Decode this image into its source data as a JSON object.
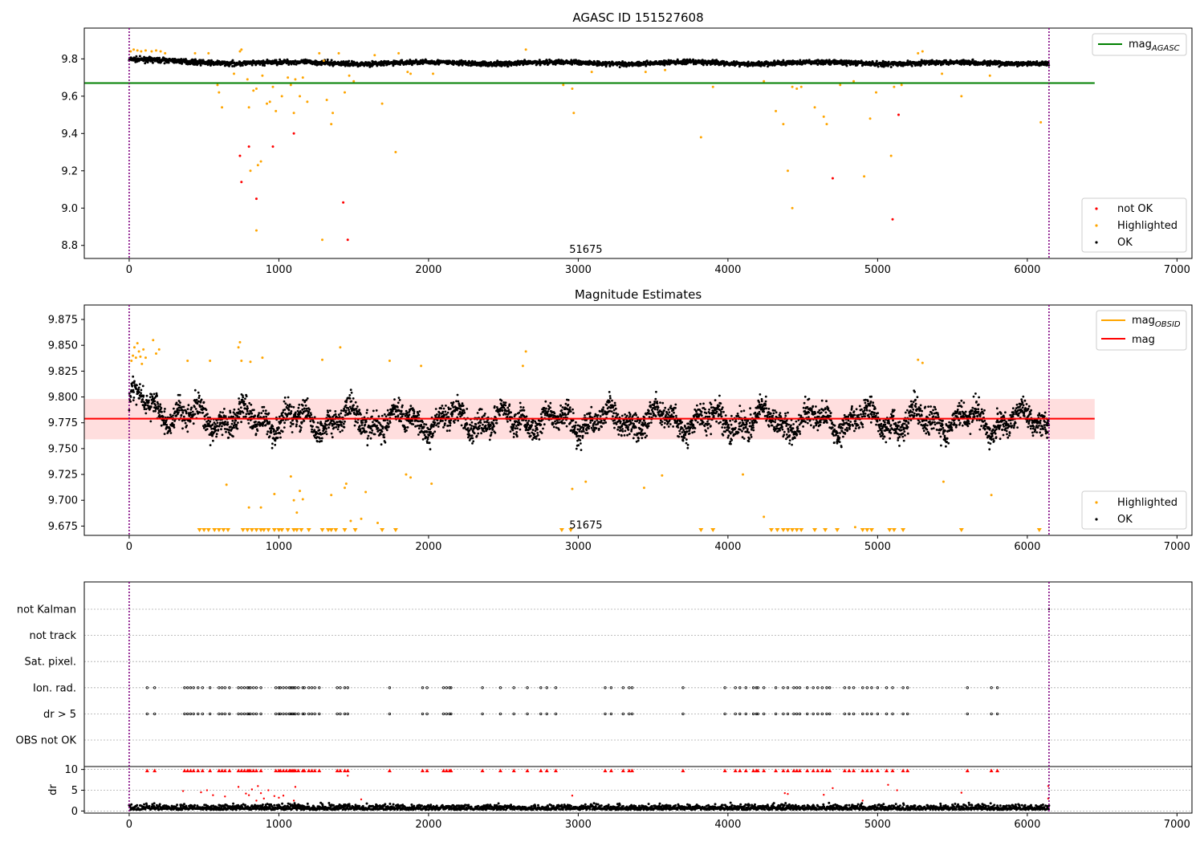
{
  "chart_data": [
    {
      "type": "scatter",
      "title": "AGASC ID 151527608",
      "xlim": [
        -300,
        7100
      ],
      "ylim": [
        8.73,
        9.965
      ],
      "xticks": [
        "0",
        "1000",
        "2000",
        "3000",
        "4000",
        "5000",
        "6000",
        "7000"
      ],
      "yticks": [
        "8.8",
        "9.0",
        "9.2",
        "9.4",
        "9.6",
        "9.8"
      ],
      "obs_label": {
        "text": "51675",
        "x": 2940,
        "y": 8.76
      },
      "vlines_x": [
        0,
        6145
      ],
      "mag_agasc": {
        "value": 9.67,
        "x_range": [
          -300,
          6450
        ]
      },
      "ok_band": {
        "center": 9.79,
        "spread": 0.018,
        "x_range": [
          0,
          6145
        ]
      },
      "highlighted_points": [
        [
          10,
          9.84
        ],
        [
          30,
          9.85
        ],
        [
          55,
          9.845
        ],
        [
          80,
          9.84
        ],
        [
          110,
          9.845
        ],
        [
          150,
          9.84
        ],
        [
          180,
          9.845
        ],
        [
          210,
          9.84
        ],
        [
          240,
          9.83
        ],
        [
          440,
          9.83
        ],
        [
          530,
          9.83
        ],
        [
          590,
          9.66
        ],
        [
          600,
          9.62
        ],
        [
          620,
          9.54
        ],
        [
          700,
          9.72
        ],
        [
          740,
          9.84
        ],
        [
          750,
          9.85
        ],
        [
          790,
          9.69
        ],
        [
          800,
          9.54
        ],
        [
          810,
          9.2
        ],
        [
          830,
          9.63
        ],
        [
          850,
          9.64
        ],
        [
          860,
          9.23
        ],
        [
          880,
          9.25
        ],
        [
          890,
          9.71
        ],
        [
          920,
          9.56
        ],
        [
          940,
          9.57
        ],
        [
          960,
          9.65
        ],
        [
          980,
          9.52
        ],
        [
          1020,
          9.6
        ],
        [
          1060,
          9.7
        ],
        [
          1080,
          9.66
        ],
        [
          1100,
          9.51
        ],
        [
          1110,
          9.69
        ],
        [
          1140,
          9.6
        ],
        [
          1160,
          9.7
        ],
        [
          1190,
          9.57
        ],
        [
          1270,
          9.83
        ],
        [
          1300,
          9.79
        ],
        [
          1320,
          9.58
        ],
        [
          1350,
          9.45
        ],
        [
          1360,
          9.51
        ],
        [
          1400,
          9.83
        ],
        [
          1440,
          9.62
        ],
        [
          1470,
          9.71
        ],
        [
          1500,
          9.68
        ],
        [
          1640,
          9.82
        ],
        [
          1690,
          9.56
        ],
        [
          1780,
          9.3
        ],
        [
          1800,
          9.83
        ],
        [
          1860,
          9.73
        ],
        [
          1880,
          9.72
        ],
        [
          2030,
          9.72
        ],
        [
          2650,
          9.85
        ],
        [
          2900,
          9.66
        ],
        [
          2960,
          9.64
        ],
        [
          2970,
          9.51
        ],
        [
          3090,
          9.73
        ],
        [
          3450,
          9.73
        ],
        [
          3580,
          9.74
        ],
        [
          3820,
          9.38
        ],
        [
          3900,
          9.65
        ],
        [
          4240,
          9.68
        ],
        [
          4320,
          9.52
        ],
        [
          4370,
          9.45
        ],
        [
          4400,
          9.2
        ],
        [
          4430,
          9.0
        ],
        [
          4430,
          9.65
        ],
        [
          4460,
          9.64
        ],
        [
          4490,
          9.65
        ],
        [
          4580,
          9.54
        ],
        [
          4640,
          9.49
        ],
        [
          4660,
          9.45
        ],
        [
          4750,
          9.66
        ],
        [
          4840,
          9.68
        ],
        [
          4910,
          9.17
        ],
        [
          4950,
          9.48
        ],
        [
          4990,
          9.62
        ],
        [
          5090,
          9.28
        ],
        [
          5110,
          9.65
        ],
        [
          5160,
          9.66
        ],
        [
          5270,
          9.83
        ],
        [
          5300,
          9.84
        ],
        [
          5430,
          9.72
        ],
        [
          5560,
          9.6
        ],
        [
          5750,
          9.71
        ],
        [
          6090,
          9.46
        ],
        [
          850,
          8.88
        ],
        [
          1290,
          8.83
        ]
      ],
      "not_ok_points": [
        [
          740,
          9.28
        ],
        [
          750,
          9.14
        ],
        [
          800,
          9.33
        ],
        [
          850,
          9.05
        ],
        [
          960,
          9.33
        ],
        [
          1100,
          9.4
        ],
        [
          1430,
          9.03
        ],
        [
          1460,
          8.83
        ],
        [
          4700,
          9.16
        ],
        [
          5100,
          8.94
        ],
        [
          5140,
          9.5
        ]
      ],
      "legend_line": {
        "label_main": "mag",
        "label_sub": "AGASC",
        "color": "#008000"
      },
      "legend_points": [
        {
          "label": "not OK",
          "color": "#ff0000"
        },
        {
          "label": "Highlighted",
          "color": "#ffa500"
        },
        {
          "label": "OK",
          "color": "#000000"
        }
      ]
    },
    {
      "type": "scatter",
      "title": "Magnitude Estimates",
      "xlim": [
        -300,
        7100
      ],
      "ylim": [
        9.666,
        9.889
      ],
      "xticks": [
        "0",
        "1000",
        "2000",
        "3000",
        "4000",
        "5000",
        "6000",
        "7000"
      ],
      "yticks": [
        "9.675",
        "9.700",
        "9.725",
        "9.750",
        "9.775",
        "9.800",
        "9.825",
        "9.850",
        "9.875"
      ],
      "obs_label": {
        "text": "51675",
        "x": 2940,
        "y": 9.6725
      },
      "vlines_x": [
        0,
        6145
      ],
      "mag_line": {
        "value": 9.779,
        "x_range": [
          -300,
          6450
        ],
        "color": "#ff0000"
      },
      "mag_band": {
        "low": 9.759,
        "high": 9.798,
        "x_range": [
          -300,
          6450
        ]
      },
      "ok_cloud": {
        "center": 9.777,
        "spread": 0.014,
        "early_center": 9.8,
        "x_range": [
          0,
          6145
        ]
      },
      "highlighted_points": [
        [
          15,
          9.835
        ],
        [
          25,
          9.84
        ],
        [
          35,
          9.848
        ],
        [
          45,
          9.838
        ],
        [
          55,
          9.852
        ],
        [
          65,
          9.844
        ],
        [
          75,
          9.839
        ],
        [
          85,
          9.832
        ],
        [
          95,
          9.846
        ],
        [
          110,
          9.838
        ],
        [
          160,
          9.855
        ],
        [
          180,
          9.842
        ],
        [
          200,
          9.846
        ],
        [
          390,
          9.835
        ],
        [
          540,
          9.835
        ],
        [
          650,
          9.715
        ],
        [
          730,
          9.848
        ],
        [
          740,
          9.853
        ],
        [
          750,
          9.835
        ],
        [
          800,
          9.693
        ],
        [
          810,
          9.834
        ],
        [
          880,
          9.693
        ],
        [
          890,
          9.838
        ],
        [
          970,
          9.706
        ],
        [
          1080,
          9.723
        ],
        [
          1100,
          9.7
        ],
        [
          1120,
          9.688
        ],
        [
          1140,
          9.709
        ],
        [
          1160,
          9.701
        ],
        [
          1290,
          9.836
        ],
        [
          1350,
          9.705
        ],
        [
          1410,
          9.848
        ],
        [
          1440,
          9.712
        ],
        [
          1450,
          9.716
        ],
        [
          1480,
          9.68
        ],
        [
          1550,
          9.682
        ],
        [
          1580,
          9.708
        ],
        [
          1660,
          9.678
        ],
        [
          1740,
          9.835
        ],
        [
          1850,
          9.725
        ],
        [
          1880,
          9.722
        ],
        [
          1950,
          9.83
        ],
        [
          2020,
          9.716
        ],
        [
          2630,
          9.83
        ],
        [
          2650,
          9.844
        ],
        [
          2960,
          9.711
        ],
        [
          3050,
          9.718
        ],
        [
          3440,
          9.712
        ],
        [
          3560,
          9.724
        ],
        [
          4100,
          9.725
        ],
        [
          4240,
          9.684
        ],
        [
          4850,
          9.674
        ],
        [
          5270,
          9.836
        ],
        [
          5300,
          9.833
        ],
        [
          5440,
          9.718
        ],
        [
          5760,
          9.705
        ]
      ],
      "down_markers_x": [
        470,
        500,
        530,
        570,
        600,
        630,
        660,
        760,
        790,
        820,
        850,
        880,
        900,
        930,
        970,
        1000,
        1020,
        1060,
        1100,
        1120,
        1150,
        1200,
        1290,
        1330,
        1350,
        1380,
        1440,
        1510,
        1690,
        1780,
        2890,
        2950,
        3820,
        3900,
        4290,
        4330,
        4370,
        4400,
        4430,
        4460,
        4490,
        4580,
        4650,
        4730,
        4900,
        4930,
        4960,
        5080,
        5110,
        5170,
        5560,
        6080
      ],
      "legend_line": [
        {
          "label_main": "mag",
          "label_sub": "OBSID",
          "color": "#ffa500"
        },
        {
          "label_main": "mag",
          "label_sub": "",
          "color": "#ff0000"
        }
      ],
      "legend_points": [
        {
          "label": "Highlighted",
          "color": "#ffa500"
        },
        {
          "label": "OK",
          "color": "#000000"
        }
      ]
    },
    {
      "type": "scatter",
      "title": "",
      "xlim": [
        -300,
        7100
      ],
      "categories": [
        "not Kalman",
        "not track",
        "Sat. pixel.",
        "Ion. rad.",
        "dr > 5",
        "OBS not OK"
      ],
      "flag_x": [
        120,
        170,
        370,
        390,
        410,
        430,
        460,
        490,
        540,
        600,
        620,
        640,
        670,
        730,
        750,
        770,
        790,
        800,
        810,
        830,
        850,
        880,
        980,
        1000,
        1010,
        1030,
        1050,
        1070,
        1080,
        1090,
        1100,
        1110,
        1130,
        1160,
        1170,
        1200,
        1220,
        1240,
        1270,
        1390,
        1410,
        1440,
        1460,
        1740,
        1960,
        1990,
        2100,
        2120,
        2140,
        2150,
        2360,
        2480,
        2570,
        2660,
        2750,
        2790,
        2850,
        3180,
        3220,
        3300,
        3340,
        3360,
        3700,
        3980,
        4050,
        4080,
        4120,
        4170,
        4190,
        4200,
        4240,
        4320,
        4370,
        4400,
        4440,
        4460,
        4480,
        4530,
        4570,
        4600,
        4630,
        4660,
        4680,
        4780,
        4810,
        4840,
        4900,
        4930,
        4960,
        5000,
        5060,
        5100,
        5170,
        5200,
        5600,
        5760,
        5800
      ],
      "dr_panel": {
        "ylabel": "dr",
        "yticks": [
          "0",
          "5",
          "10"
        ],
        "ylim": [
          -0.5,
          10.7
        ],
        "capped_value": 9.7,
        "outlier_points": [
          [
            360,
            4.8
          ],
          [
            480,
            4.5
          ],
          [
            520,
            5.0
          ],
          [
            560,
            3.8
          ],
          [
            640,
            3.5
          ],
          [
            730,
            5.8
          ],
          [
            780,
            4.2
          ],
          [
            800,
            3.8
          ],
          [
            820,
            5.2
          ],
          [
            850,
            2.5
          ],
          [
            860,
            6.0
          ],
          [
            880,
            4.3
          ],
          [
            900,
            3.0
          ],
          [
            930,
            5.0
          ],
          [
            970,
            3.6
          ],
          [
            1000,
            3.2
          ],
          [
            1030,
            3.7
          ],
          [
            1100,
            2.5
          ],
          [
            1110,
            5.8
          ],
          [
            1460,
            8.5
          ],
          [
            1550,
            2.8
          ],
          [
            2960,
            3.7
          ],
          [
            4380,
            4.3
          ],
          [
            4400,
            4.1
          ],
          [
            4640,
            3.9
          ],
          [
            4700,
            5.5
          ],
          [
            4900,
            2.5
          ],
          [
            5070,
            6.3
          ],
          [
            5130,
            5.0
          ],
          [
            5560,
            4.4
          ],
          [
            6140,
            3.0
          ],
          [
            6140,
            6.0
          ]
        ]
      },
      "xticks": [
        "0",
        "1000",
        "2000",
        "3000",
        "4000",
        "5000",
        "6000",
        "7000"
      ],
      "vlines_x": [
        0,
        6145
      ]
    }
  ]
}
